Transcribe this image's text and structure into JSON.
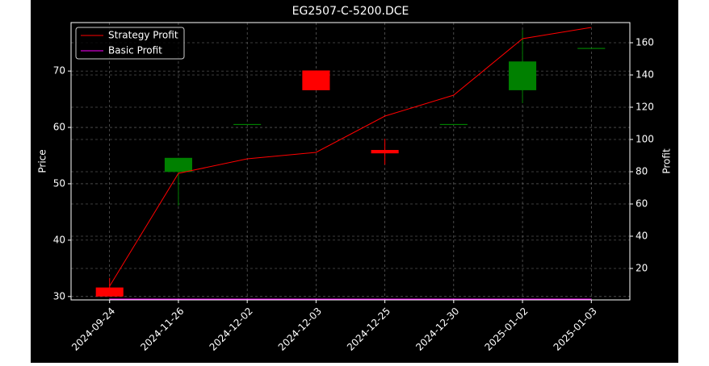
{
  "chart_data": {
    "type": "candlestick",
    "title": "EG2507-C-5200.DCE",
    "y_label": "Price",
    "y2_label": "Profit",
    "categories": [
      "2024-09-24",
      "2024-11-26",
      "2024-12-02",
      "2024-12-03",
      "2024-12-25",
      "2024-12-30",
      "2025-01-02",
      "2025-01-03"
    ],
    "open": [
      31.6,
      52.1,
      60.6,
      70.1,
      56.0,
      60.6,
      66.6,
      74.1
    ],
    "high": [
      33.3,
      54.6,
      60.6,
      70.1,
      58.0,
      60.6,
      77.3,
      74.1
    ],
    "low": [
      30.0,
      46.1,
      60.6,
      66.6,
      53.4,
      60.6,
      64.3,
      74.1
    ],
    "close": [
      30.0,
      54.6,
      60.6,
      66.6,
      55.4,
      60.6,
      71.7,
      74.1
    ],
    "up_color": "#008000",
    "down_color": "#ff0000",
    "series": [
      {
        "name": "Strategy Profit",
        "color": "#ff0000",
        "axis": "y2",
        "values": [
          9,
          79,
          88,
          92,
          114.5,
          127.5,
          162.5,
          169.5
        ]
      },
      {
        "name": "Basic Profit",
        "color": "#ff00ff",
        "axis": "y2",
        "values": [
          1,
          1,
          1,
          1,
          1,
          1,
          1,
          1
        ]
      }
    ],
    "ylim": [
      29.4,
      78.6
    ],
    "yticks": [
      30,
      40,
      50,
      60,
      70
    ],
    "y2lim": [
      0.5,
      172.5
    ],
    "y2ticks": [
      20,
      40,
      60,
      80,
      100,
      120,
      140,
      160
    ],
    "grid": true,
    "legend": "upper left"
  }
}
